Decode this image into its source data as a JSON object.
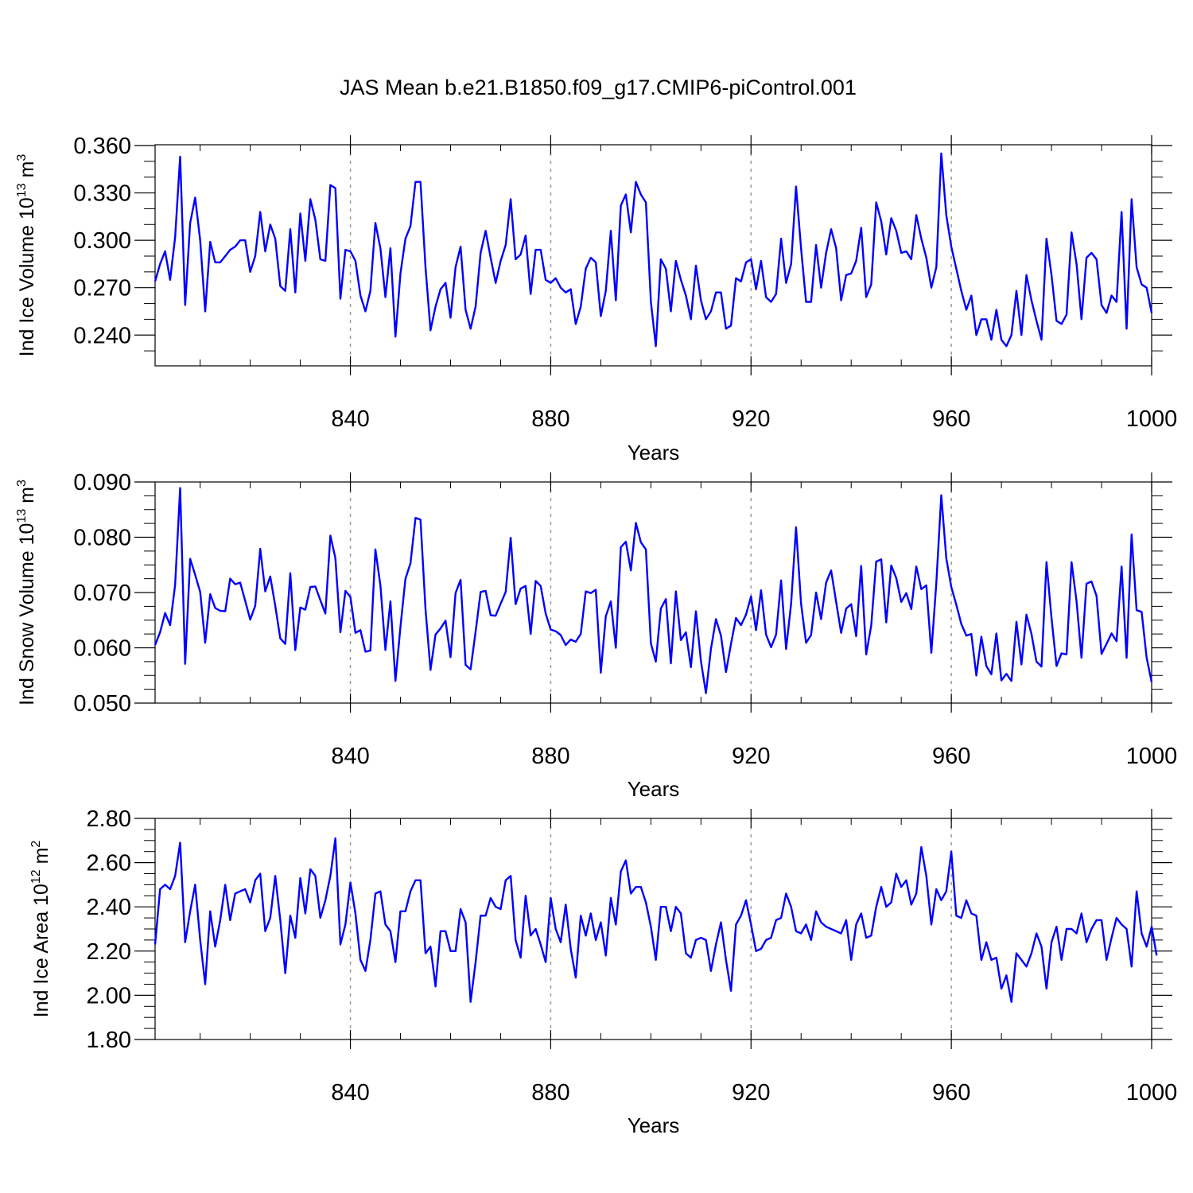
{
  "title": "JAS Mean b.e21.B1850.f09_g17.CMIP6-piControl.001",
  "colors": {
    "line": "#0000ff",
    "grid": "#999999",
    "axis": "#000000"
  },
  "chart_data": [
    {
      "type": "line",
      "ylabel": "Ind Ice Volume 10",
      "ylabel_exp": "13",
      "ylabel_unit": " m",
      "ylabel_unit_exp": "3",
      "xlabel": "Years",
      "xlim": [
        801,
        1000
      ],
      "ylim": [
        0.2205,
        0.3605
      ],
      "x_ticks": [
        840,
        880,
        920,
        960,
        1000
      ],
      "y_ticks": [
        0.24,
        0.27,
        0.3,
        0.33,
        0.36
      ],
      "y_tick_labels": [
        "0.240",
        "0.270",
        "0.300",
        "0.330",
        "0.360"
      ],
      "y_minor_step": 0.01,
      "grid": "vertical dashed at major x ticks",
      "series": [
        {
          "values": [
            0.274,
            0.285,
            0.293,
            0.275,
            0.302,
            0.353,
            0.259,
            0.311,
            0.327,
            0.3,
            0.255,
            0.299,
            0.286,
            0.286,
            0.29,
            0.294,
            0.296,
            0.3,
            0.3,
            0.28,
            0.29,
            0.318,
            0.293,
            0.31,
            0.301,
            0.271,
            0.268,
            0.307,
            0.267,
            0.317,
            0.287,
            0.326,
            0.313,
            0.288,
            0.287,
            0.335,
            0.333,
            0.263,
            0.294,
            0.293,
            0.287,
            0.265,
            0.255,
            0.268,
            0.311,
            0.295,
            0.264,
            0.295,
            0.239,
            0.279,
            0.301,
            0.309,
            0.337,
            0.337,
            0.283,
            0.243,
            0.258,
            0.269,
            0.273,
            0.251,
            0.283,
            0.296,
            0.256,
            0.244,
            0.258,
            0.292,
            0.306,
            0.289,
            0.273,
            0.287,
            0.297,
            0.326,
            0.288,
            0.291,
            0.303,
            0.266,
            0.294,
            0.294,
            0.275,
            0.273,
            0.276,
            0.27,
            0.267,
            0.269,
            0.247,
            0.258,
            0.282,
            0.289,
            0.286,
            0.252,
            0.268,
            0.306,
            0.262,
            0.322,
            0.329,
            0.305,
            0.337,
            0.329,
            0.324,
            0.261,
            0.233,
            0.288,
            0.282,
            0.255,
            0.287,
            0.275,
            0.265,
            0.25,
            0.284,
            0.262,
            0.25,
            0.255,
            0.267,
            0.267,
            0.244,
            0.246,
            0.276,
            0.274,
            0.286,
            0.288,
            0.269,
            0.287,
            0.264,
            0.261,
            0.266,
            0.301,
            0.273,
            0.285,
            0.334,
            0.295,
            0.261,
            0.261,
            0.297,
            0.27,
            0.292,
            0.307,
            0.295,
            0.262,
            0.278,
            0.279,
            0.287,
            0.308,
            0.264,
            0.272,
            0.324,
            0.312,
            0.291,
            0.314,
            0.306,
            0.292,
            0.293,
            0.288,
            0.316,
            0.301,
            0.289,
            0.27,
            0.283,
            0.355,
            0.316,
            0.296,
            0.282,
            0.268,
            0.256,
            0.265,
            0.24,
            0.25,
            0.25,
            0.237,
            0.256,
            0.237,
            0.233,
            0.24,
            0.268,
            0.24,
            0.278,
            0.262,
            0.249,
            0.237,
            0.301,
            0.278,
            0.249,
            0.247,
            0.253,
            0.305,
            0.285,
            0.25,
            0.289,
            0.292,
            0.288,
            0.259,
            0.254,
            0.265,
            0.261,
            0.318,
            0.244,
            0.326,
            0.283,
            0.272,
            0.27,
            0.254
          ]
        }
      ]
    },
    {
      "type": "line",
      "ylabel": "Ind Snow Volume 10",
      "ylabel_exp": "13",
      "ylabel_unit": " m",
      "ylabel_unit_exp": "3",
      "xlabel": "Years",
      "xlim": [
        801,
        1000
      ],
      "ylim": [
        0.05,
        0.09
      ],
      "x_ticks": [
        840,
        880,
        920,
        960,
        1000
      ],
      "y_ticks": [
        0.05,
        0.06,
        0.07,
        0.08,
        0.09
      ],
      "y_tick_labels": [
        "0.050",
        "0.060",
        "0.070",
        "0.080",
        "0.090"
      ],
      "y_minor_step": 0.0025,
      "grid": "vertical dashed at major x ticks",
      "series": [
        {
          "values": [
            0.0605,
            0.0628,
            0.0663,
            0.0641,
            0.0714,
            0.0889,
            0.0571,
            0.0761,
            0.0732,
            0.0701,
            0.0609,
            0.0697,
            0.0672,
            0.0667,
            0.0666,
            0.0725,
            0.0715,
            0.0718,
            0.0685,
            0.0651,
            0.0676,
            0.0779,
            0.0702,
            0.0729,
            0.0676,
            0.0617,
            0.0607,
            0.0735,
            0.0596,
            0.0673,
            0.0669,
            0.071,
            0.0711,
            0.0686,
            0.0662,
            0.0803,
            0.0762,
            0.0628,
            0.0703,
            0.0692,
            0.0627,
            0.0632,
            0.0593,
            0.0595,
            0.0778,
            0.0713,
            0.0596,
            0.0684,
            0.054,
            0.0638,
            0.0725,
            0.0753,
            0.0835,
            0.0832,
            0.067,
            0.056,
            0.0624,
            0.0635,
            0.0649,
            0.0583,
            0.0699,
            0.0723,
            0.0569,
            0.0561,
            0.0629,
            0.0701,
            0.0703,
            0.0659,
            0.0658,
            0.068,
            0.0701,
            0.0799,
            0.0679,
            0.0707,
            0.0712,
            0.0625,
            0.0721,
            0.0712,
            0.0662,
            0.0633,
            0.063,
            0.0623,
            0.0605,
            0.0615,
            0.0611,
            0.0625,
            0.0702,
            0.0699,
            0.0705,
            0.0555,
            0.0657,
            0.0684,
            0.06,
            0.0782,
            0.0792,
            0.074,
            0.0826,
            0.0791,
            0.0778,
            0.0608,
            0.0575,
            0.0671,
            0.0688,
            0.0572,
            0.0702,
            0.0614,
            0.0628,
            0.0565,
            0.0666,
            0.0576,
            0.0518,
            0.0598,
            0.0652,
            0.0622,
            0.0556,
            0.0607,
            0.0654,
            0.0641,
            0.066,
            0.0693,
            0.0632,
            0.0704,
            0.0624,
            0.0601,
            0.0624,
            0.0722,
            0.0598,
            0.068,
            0.0818,
            0.068,
            0.0609,
            0.0623,
            0.07,
            0.0652,
            0.0718,
            0.074,
            0.0683,
            0.0627,
            0.0671,
            0.0679,
            0.0621,
            0.0748,
            0.0588,
            0.064,
            0.0756,
            0.076,
            0.0646,
            0.0749,
            0.0726,
            0.0683,
            0.0699,
            0.067,
            0.0747,
            0.0706,
            0.0713,
            0.0591,
            0.0718,
            0.0876,
            0.0762,
            0.071,
            0.0678,
            0.0643,
            0.0622,
            0.0625,
            0.055,
            0.062,
            0.0567,
            0.0552,
            0.0626,
            0.0541,
            0.0553,
            0.054,
            0.0647,
            0.057,
            0.066,
            0.0625,
            0.0575,
            0.0566,
            0.0755,
            0.0654,
            0.0567,
            0.059,
            0.0588,
            0.0755,
            0.0684,
            0.0582,
            0.0716,
            0.072,
            0.0694,
            0.0589,
            0.0607,
            0.0626,
            0.0612,
            0.0747,
            0.0582,
            0.0805,
            0.0668,
            0.0665,
            0.0582,
            0.0538
          ]
        }
      ]
    },
    {
      "type": "line",
      "ylabel": "Ind Ice Area 10",
      "ylabel_exp": "12",
      "ylabel_unit": " m",
      "ylabel_unit_exp": "2",
      "xlabel": "Years",
      "xlim": [
        801,
        1000
      ],
      "ylim": [
        1.8,
        2.8
      ],
      "x_ticks": [
        840,
        880,
        920,
        960,
        1000
      ],
      "y_ticks": [
        1.8,
        2.0,
        2.2,
        2.4,
        2.6,
        2.8
      ],
      "y_tick_labels": [
        "1.80",
        "2.00",
        "2.20",
        "2.40",
        "2.60",
        "2.80"
      ],
      "y_minor_step": 0.05,
      "grid": "vertical dashed at major x ticks",
      "series": [
        {
          "values": [
            2.23,
            2.48,
            2.5,
            2.48,
            2.54,
            2.69,
            2.24,
            2.38,
            2.5,
            2.25,
            2.05,
            2.38,
            2.22,
            2.34,
            2.5,
            2.34,
            2.46,
            2.47,
            2.48,
            2.42,
            2.52,
            2.55,
            2.29,
            2.35,
            2.54,
            2.34,
            2.1,
            2.36,
            2.26,
            2.53,
            2.37,
            2.57,
            2.54,
            2.35,
            2.43,
            2.54,
            2.71,
            2.23,
            2.32,
            2.51,
            2.37,
            2.16,
            2.11,
            2.25,
            2.46,
            2.47,
            2.32,
            2.29,
            2.15,
            2.38,
            2.38,
            2.47,
            2.52,
            2.52,
            2.19,
            2.22,
            2.04,
            2.29,
            2.29,
            2.2,
            2.2,
            2.39,
            2.33,
            1.97,
            2.15,
            2.36,
            2.36,
            2.44,
            2.4,
            2.39,
            2.52,
            2.54,
            2.25,
            2.17,
            2.45,
            2.27,
            2.3,
            2.23,
            2.15,
            2.44,
            2.3,
            2.24,
            2.41,
            2.21,
            2.08,
            2.36,
            2.27,
            2.37,
            2.25,
            2.33,
            2.18,
            2.44,
            2.32,
            2.56,
            2.61,
            2.46,
            2.49,
            2.49,
            2.42,
            2.31,
            2.16,
            2.4,
            2.4,
            2.29,
            2.4,
            2.37,
            2.19,
            2.17,
            2.25,
            2.26,
            2.25,
            2.11,
            2.23,
            2.33,
            2.16,
            2.02,
            2.32,
            2.36,
            2.43,
            2.32,
            2.2,
            2.21,
            2.25,
            2.26,
            2.34,
            2.35,
            2.46,
            2.4,
            2.29,
            2.28,
            2.32,
            2.25,
            2.38,
            2.33,
            2.31,
            2.3,
            2.29,
            2.28,
            2.34,
            2.16,
            2.32,
            2.37,
            2.26,
            2.27,
            2.4,
            2.49,
            2.4,
            2.42,
            2.55,
            2.49,
            2.52,
            2.41,
            2.46,
            2.67,
            2.54,
            2.32,
            2.48,
            2.43,
            2.47,
            2.65,
            2.36,
            2.35,
            2.43,
            2.37,
            2.36,
            2.16,
            2.24,
            2.16,
            2.17,
            2.03,
            2.09,
            1.97,
            2.19,
            2.16,
            2.13,
            2.19,
            2.28,
            2.22,
            2.03,
            2.24,
            2.31,
            2.16,
            2.3,
            2.3,
            2.28,
            2.37,
            2.24,
            2.3,
            2.34,
            2.34,
            2.16,
            2.26,
            2.35,
            2.32,
            2.3,
            2.13,
            2.47,
            2.28,
            2.22,
            2.31,
            2.18
          ]
        }
      ]
    }
  ]
}
